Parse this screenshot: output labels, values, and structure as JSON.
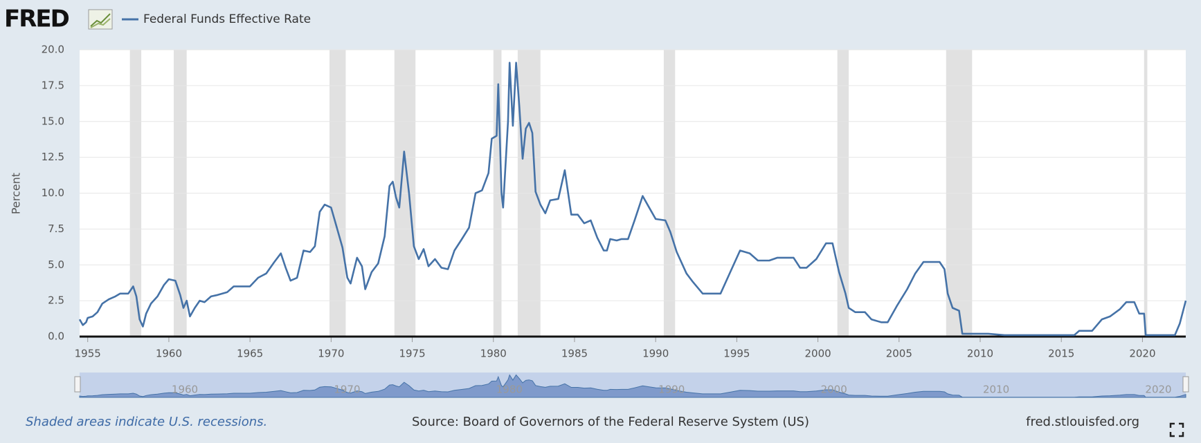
{
  "logo": "FRED",
  "notes": "Shaded areas indicate U.S. recessions.",
  "source": "Source: Board of Governors of the Federal Reserve System (US)",
  "site": "fred.stlouisfed.org",
  "chart_data": {
    "type": "line",
    "y_label": "Percent",
    "xlim": [
      1954.5,
      2022.67
    ],
    "xticks": [
      1955,
      1960,
      1965,
      1970,
      1975,
      1980,
      1985,
      1990,
      1995,
      2000,
      2005,
      2010,
      2015,
      2020
    ],
    "ylim": [
      0,
      20
    ],
    "yticks": [
      {
        "value": 0,
        "label": "0.0"
      },
      {
        "value": 2.5,
        "label": "2.5"
      },
      {
        "value": 5,
        "label": "5.0"
      },
      {
        "value": 7.5,
        "label": "7.5"
      },
      {
        "value": 10,
        "label": "10.0"
      },
      {
        "value": 12.5,
        "label": "12.5"
      },
      {
        "value": 15,
        "label": "15.0"
      },
      {
        "value": 17.5,
        "label": "17.5"
      },
      {
        "value": 20,
        "label": "20.0"
      }
    ],
    "grid": true,
    "recessions": [
      [
        1957.6,
        1958.3
      ],
      [
        1960.3,
        1961.1
      ],
      [
        1969.9,
        1970.9
      ],
      [
        1973.9,
        1975.2
      ],
      [
        1980.0,
        1980.5
      ],
      [
        1981.5,
        1982.9
      ],
      [
        1990.5,
        1991.2
      ],
      [
        2001.2,
        2001.9
      ],
      [
        2007.9,
        2009.5
      ],
      [
        2020.1,
        2020.3
      ]
    ],
    "navigator_ticks": [
      1960,
      1970,
      1980,
      1990,
      2000,
      2010,
      2020
    ],
    "x": [
      1954.5,
      1954.7,
      1954.9,
      1955.0,
      1955.3,
      1955.6,
      1955.9,
      1956.3,
      1956.7,
      1957.0,
      1957.5,
      1957.8,
      1958.0,
      1958.2,
      1958.4,
      1958.6,
      1958.9,
      1959.3,
      1959.7,
      1960.0,
      1960.4,
      1960.7,
      1960.9,
      1961.1,
      1961.3,
      1961.6,
      1961.9,
      1962.2,
      1962.6,
      1963.0,
      1963.6,
      1964.0,
      1964.6,
      1965.0,
      1965.5,
      1966.0,
      1966.5,
      1966.9,
      1967.2,
      1967.5,
      1967.9,
      1968.3,
      1968.7,
      1969.0,
      1969.3,
      1969.6,
      1970.0,
      1970.3,
      1970.7,
      1971.0,
      1971.2,
      1971.6,
      1971.9,
      1972.1,
      1972.5,
      1972.9,
      1973.3,
      1973.6,
      1973.8,
      1974.0,
      1974.2,
      1974.5,
      1974.8,
      1975.1,
      1975.4,
      1975.7,
      1976.0,
      1976.4,
      1976.8,
      1977.2,
      1977.6,
      1978.0,
      1978.5,
      1978.9,
      1979.3,
      1979.7,
      1979.9,
      1980.2,
      1980.3,
      1980.5,
      1980.6,
      1980.9,
      1981.0,
      1981.2,
      1981.4,
      1981.6,
      1981.8,
      1982.0,
      1982.2,
      1982.4,
      1982.6,
      1982.9,
      1983.2,
      1983.5,
      1984.0,
      1984.4,
      1984.8,
      1985.2,
      1985.6,
      1986.0,
      1986.4,
      1986.8,
      1987.0,
      1987.2,
      1987.6,
      1987.9,
      1988.3,
      1988.7,
      1989.2,
      1989.6,
      1990.0,
      1990.6,
      1990.9,
      1991.3,
      1991.9,
      1992.3,
      1992.9,
      1993.5,
      1994.0,
      1994.6,
      1995.2,
      1995.8,
      1996.3,
      1997.0,
      1997.5,
      1998.5,
      1998.9,
      1999.3,
      1999.9,
      2000.5,
      2000.9,
      2001.3,
      2001.7,
      2001.9,
      2002.3,
      2002.9,
      2003.3,
      2003.9,
      2004.3,
      2004.9,
      2005.5,
      2006.0,
      2006.5,
      2007.5,
      2007.8,
      2008.0,
      2008.3,
      2008.7,
      2008.9,
      2009.5,
      2010.5,
      2011.5,
      2015.8,
      2016.1,
      2016.9,
      2017.5,
      2018.0,
      2018.6,
      2019.0,
      2019.5,
      2019.8,
      2020.1,
      2020.2,
      2022.0,
      2022.3,
      2022.67
    ],
    "series": [
      {
        "name": "Federal Funds Effective Rate",
        "color": "#4572a7",
        "values": [
          1.2,
          0.8,
          1.0,
          1.3,
          1.4,
          1.7,
          2.3,
          2.6,
          2.8,
          3.0,
          3.0,
          3.5,
          2.8,
          1.2,
          0.7,
          1.6,
          2.3,
          2.8,
          3.6,
          4.0,
          3.9,
          2.9,
          2.0,
          2.5,
          1.4,
          2.0,
          2.5,
          2.4,
          2.8,
          2.9,
          3.1,
          3.5,
          3.5,
          3.5,
          4.1,
          4.4,
          5.2,
          5.8,
          4.8,
          3.9,
          4.1,
          6.0,
          5.9,
          6.3,
          8.7,
          9.2,
          9.0,
          7.8,
          6.2,
          4.1,
          3.7,
          5.5,
          4.9,
          3.3,
          4.5,
          5.1,
          7.0,
          10.5,
          10.8,
          9.7,
          9.0,
          12.9,
          10.0,
          6.3,
          5.4,
          6.1,
          4.9,
          5.4,
          4.8,
          4.7,
          6.0,
          6.7,
          7.6,
          10.0,
          10.2,
          11.4,
          13.8,
          14.0,
          17.6,
          10.0,
          9.0,
          15.0,
          19.1,
          14.7,
          19.1,
          16.0,
          12.4,
          14.5,
          14.9,
          14.2,
          10.1,
          9.2,
          8.6,
          9.5,
          9.6,
          11.6,
          8.5,
          8.5,
          7.9,
          8.1,
          6.9,
          6.0,
          6.0,
          6.8,
          6.7,
          6.8,
          6.8,
          8.1,
          9.8,
          9.0,
          8.2,
          8.1,
          7.3,
          5.9,
          4.4,
          3.8,
          3.0,
          3.0,
          3.0,
          4.5,
          6.0,
          5.8,
          5.3,
          5.3,
          5.5,
          5.5,
          4.8,
          4.8,
          5.4,
          6.5,
          6.5,
          4.5,
          3.0,
          2.0,
          1.7,
          1.7,
          1.2,
          1.0,
          1.0,
          2.2,
          3.3,
          4.4,
          5.2,
          5.2,
          4.7,
          3.0,
          2.0,
          1.8,
          0.2,
          0.2,
          0.2,
          0.1,
          0.1,
          0.4,
          0.4,
          1.2,
          1.4,
          1.9,
          2.4,
          2.4,
          1.6,
          1.6,
          0.1,
          0.1,
          0.9,
          2.5
        ]
      }
    ]
  }
}
